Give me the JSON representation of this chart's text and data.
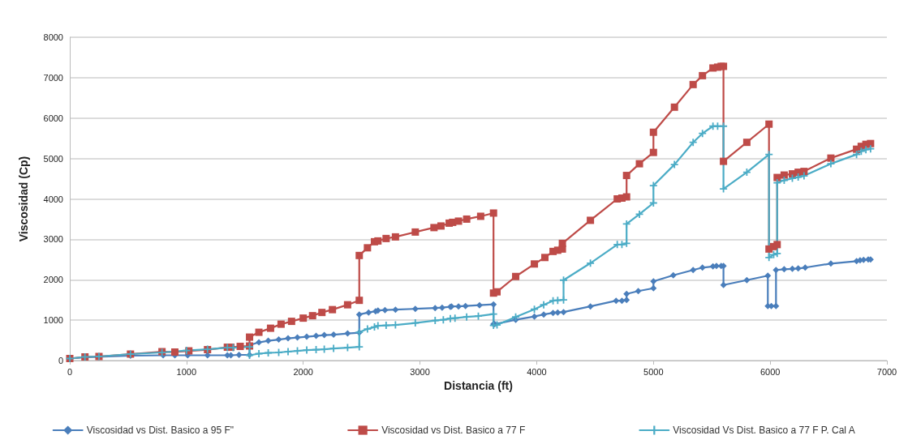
{
  "chart_data": {
    "type": "line",
    "xlabel": "Distancia (ft)",
    "ylabel": "Viscosidad (Cp)",
    "xlim": [
      0,
      7000
    ],
    "xticks": [
      0,
      1000,
      2000,
      3000,
      4000,
      5000,
      6000,
      7000
    ],
    "ylim": [
      0,
      8000
    ],
    "yticks": [
      0,
      1000,
      2000,
      3000,
      4000,
      5000,
      6000,
      7000,
      8000
    ],
    "grid": "y",
    "legend": "bottom",
    "line_style": "solid",
    "series": [
      {
        "name": "Viscosidad vs Dist. Basico a 95 F\"",
        "color": "#4a7ebb",
        "marker": "diamond",
        "x": [
          0,
          130,
          240,
          520,
          800,
          900,
          1010,
          1180,
          1350,
          1380,
          1450,
          1540,
          1540,
          1620,
          1700,
          1790,
          1870,
          1950,
          2030,
          2110,
          2180,
          2260,
          2380,
          2480,
          2480,
          2560,
          2620,
          2640,
          2700,
          2790,
          2960,
          3130,
          3190,
          3260,
          3270,
          3330,
          3390,
          3510,
          3630,
          3630,
          3640,
          3820,
          3980,
          4060,
          4140,
          4180,
          4230,
          4460,
          4680,
          4730,
          4770,
          4770,
          4870,
          5000,
          5000,
          5170,
          5340,
          5420,
          5510,
          5540,
          5580,
          5600,
          5600,
          5800,
          5980,
          5980,
          6010,
          6050,
          6050,
          6120,
          6190,
          6240,
          6300,
          6520,
          6740,
          6770,
          6800,
          6840,
          6860
        ],
        "values": [
          50,
          80,
          90,
          120,
          130,
          130,
          130,
          130,
          130,
          130,
          140,
          140,
          380,
          450,
          490,
          520,
          550,
          570,
          590,
          610,
          630,
          640,
          670,
          690,
          1140,
          1190,
          1220,
          1240,
          1250,
          1260,
          1280,
          1300,
          1310,
          1330,
          1340,
          1340,
          1350,
          1370,
          1390,
          900,
          900,
          1010,
          1090,
          1140,
          1180,
          1190,
          1200,
          1340,
          1480,
          1480,
          1500,
          1650,
          1720,
          1790,
          1960,
          2110,
          2240,
          2300,
          2330,
          2340,
          2340,
          2340,
          1870,
          1990,
          2100,
          1350,
          1350,
          1350,
          2240,
          2260,
          2270,
          2280,
          2300,
          2400,
          2460,
          2480,
          2490,
          2500,
          2500
        ]
      },
      {
        "name": "Viscosidad vs Dist. Basico a 77 F",
        "color": "#be4b48",
        "marker": "square",
        "x": [
          0,
          130,
          250,
          520,
          790,
          900,
          1020,
          1180,
          1350,
          1380,
          1460,
          1540,
          1540,
          1620,
          1720,
          1810,
          1900,
          2000,
          2080,
          2160,
          2250,
          2380,
          2480,
          2480,
          2550,
          2610,
          2640,
          2710,
          2790,
          2960,
          3120,
          3180,
          3250,
          3280,
          3330,
          3400,
          3520,
          3630,
          3630,
          3660,
          3820,
          3980,
          4070,
          4140,
          4180,
          4220,
          4220,
          4460,
          4690,
          4730,
          4770,
          4770,
          4880,
          5000,
          5000,
          5180,
          5340,
          5420,
          5510,
          5550,
          5580,
          5600,
          5600,
          5800,
          5990,
          5990,
          6030,
          6060,
          6060,
          6120,
          6190,
          6240,
          6290,
          6520,
          6740,
          6780,
          6820,
          6860
        ],
        "values": [
          50,
          90,
          100,
          160,
          220,
          210,
          240,
          270,
          330,
          330,
          350,
          360,
          580,
          700,
          800,
          900,
          970,
          1050,
          1110,
          1190,
          1260,
          1380,
          1490,
          2600,
          2790,
          2940,
          2960,
          3020,
          3060,
          3180,
          3290,
          3330,
          3400,
          3420,
          3450,
          3500,
          3570,
          3650,
          1670,
          1700,
          2080,
          2390,
          2550,
          2700,
          2730,
          2760,
          2900,
          3470,
          4000,
          4020,
          4050,
          4580,
          4870,
          5150,
          5650,
          6270,
          6830,
          7050,
          7240,
          7260,
          7280,
          7280,
          4930,
          5400,
          5850,
          2760,
          2820,
          2870,
          4530,
          4590,
          4620,
          4660,
          4680,
          5010,
          5230,
          5300,
          5350,
          5370
        ]
      },
      {
        "name": "Viscosidad Vs Dist. Basico a 77 F P. Cal A",
        "color": "#4bacc6",
        "marker": "cross",
        "x": [
          0,
          130,
          250,
          520,
          790,
          1000,
          1180,
          1350,
          1400,
          1540,
          1540,
          1620,
          1700,
          1790,
          1870,
          1950,
          2030,
          2110,
          2180,
          2260,
          2380,
          2480,
          2480,
          2550,
          2610,
          2640,
          2710,
          2790,
          2960,
          3130,
          3200,
          3260,
          3300,
          3400,
          3500,
          3630,
          3630,
          3660,
          3820,
          3980,
          4060,
          4140,
          4180,
          4230,
          4230,
          4460,
          4690,
          4730,
          4770,
          4770,
          4880,
          5000,
          5000,
          5180,
          5340,
          5420,
          5510,
          5550,
          5600,
          5600,
          5800,
          5990,
          5990,
          6030,
          6060,
          6060,
          6120,
          6190,
          6240,
          6290,
          6520,
          6740,
          6780,
          6820,
          6860
        ],
        "values": [
          50,
          90,
          100,
          160,
          200,
          250,
          280,
          320,
          320,
          340,
          130,
          170,
          190,
          200,
          220,
          240,
          260,
          270,
          280,
          300,
          320,
          340,
          700,
          780,
          830,
          860,
          870,
          880,
          930,
          990,
          1010,
          1040,
          1050,
          1080,
          1100,
          1150,
          870,
          880,
          1080,
          1270,
          1380,
          1480,
          1490,
          1500,
          1990,
          2410,
          2870,
          2870,
          2900,
          3380,
          3620,
          3900,
          4330,
          4850,
          5400,
          5620,
          5800,
          5800,
          5800,
          4250,
          4660,
          5100,
          2550,
          2620,
          2650,
          4400,
          4460,
          4510,
          4540,
          4570,
          4870,
          5100,
          5180,
          5220,
          5240
        ]
      }
    ]
  }
}
